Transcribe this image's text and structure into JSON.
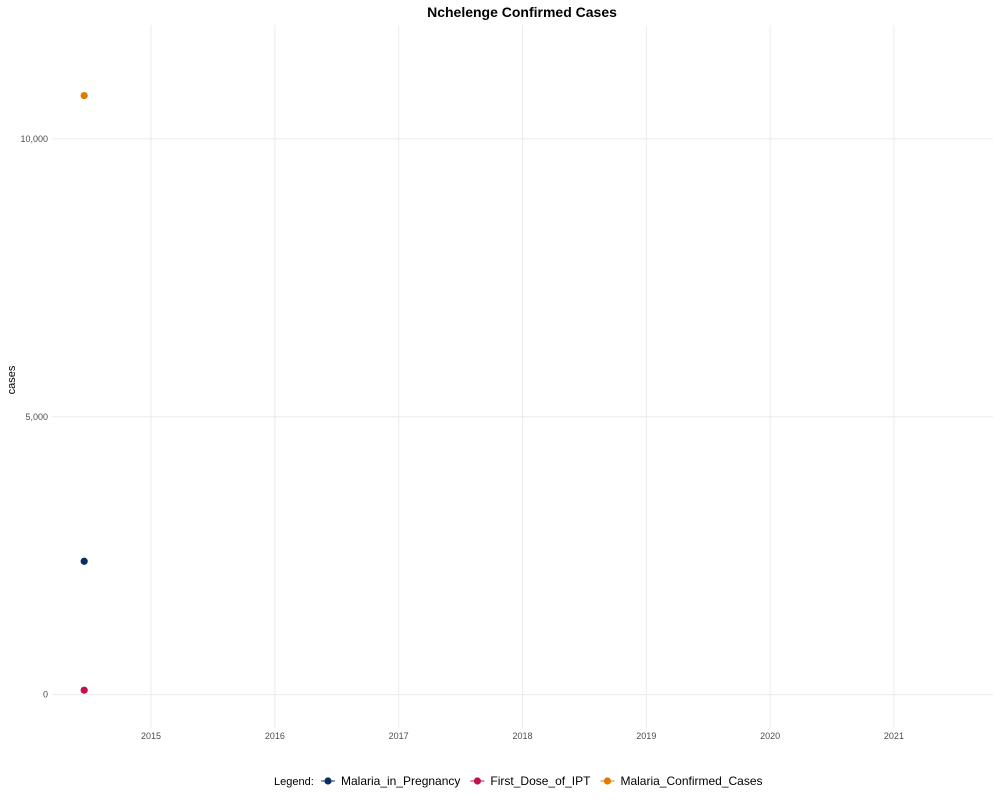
{
  "chart_data": {
    "type": "scatter",
    "title": "Nchelenge Confirmed Cases",
    "xlabel": "",
    "ylabel": "cases",
    "xlim": [
      2014.2,
      2021.8
    ],
    "ylim": [
      -600,
      12050
    ],
    "x_ticks": [
      2015,
      2016,
      2017,
      2018,
      2019,
      2020,
      2021
    ],
    "x_tick_labels": [
      "2015",
      "2016",
      "2017",
      "2018",
      "2019",
      "2020",
      "2021"
    ],
    "y_ticks": [
      0,
      5000,
      10000
    ],
    "y_tick_labels": [
      "0",
      "5,000",
      "10,000"
    ],
    "grid": true,
    "legend_position": "bottom",
    "legend_title": "Legend:",
    "series": [
      {
        "name": "Malaria_in_Pregnancy",
        "color": "#0b2e5e",
        "points": [
          {
            "x": 2014.46,
            "y": 2400
          }
        ]
      },
      {
        "name": "First_Dose_of_IPT",
        "color": "#c0134a",
        "points": [
          {
            "x": 2014.46,
            "y": 80
          }
        ]
      },
      {
        "name": "Malaria_Confirmed_Cases",
        "color": "#e07b00",
        "points": [
          {
            "x": 2014.46,
            "y": 10780
          }
        ]
      }
    ]
  }
}
